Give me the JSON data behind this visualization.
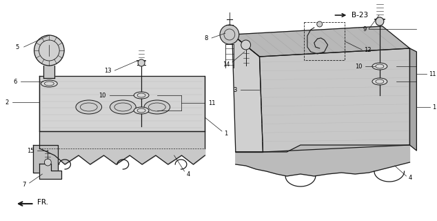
{
  "background": "#ffffff",
  "line_color": "#1a1a1a",
  "text_color": "#000000",
  "lw_main": 0.9,
  "lw_thin": 0.5,
  "fs_label": 6.0,
  "left_cover": {
    "body_color": "#d8d8d8",
    "top_color": "#c8c8c8",
    "shade_color": "#b8b8b8"
  },
  "right_cover": {
    "body_color": "#c8c8c8",
    "top_color": "#b0b0b0",
    "shade_color": "#a0a0a0"
  }
}
